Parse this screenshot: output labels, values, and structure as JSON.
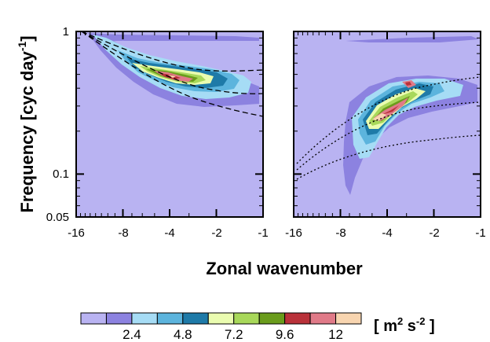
{
  "chart_data": [
    {
      "type": "heatmap",
      "panel": "left",
      "x_axis": {
        "scale": "reciprocal",
        "ticks": [
          -16,
          -8,
          -4,
          -2,
          -1
        ],
        "tick_labels": [
          "-16",
          "-8",
          "-4",
          "-2",
          "-1"
        ]
      },
      "y_axis": {
        "scale": "log",
        "range": [
          0.05,
          1
        ],
        "ticks": [
          0.05,
          0.1,
          1
        ],
        "tick_labels": [
          "0.05",
          "0.1",
          "1"
        ]
      },
      "dispersion_curves": "dashed",
      "peak_region": {
        "wavenumber": [
          -5,
          -3
        ],
        "frequency": [
          0.45,
          0.55
        ]
      }
    },
    {
      "type": "heatmap",
      "panel": "right",
      "x_axis": {
        "scale": "reciprocal",
        "ticks": [
          -16,
          -8,
          -4,
          -2,
          -1
        ],
        "tick_labels": [
          "-16",
          "-8",
          "-4",
          "-2",
          "-1"
        ]
      },
      "y_axis": {
        "scale": "log",
        "range": [
          0.05,
          1
        ],
        "ticks": [
          0.05,
          0.1,
          1
        ]
      },
      "dispersion_curves": "dotted",
      "peak_region": {
        "wavenumber": [
          -5,
          -3
        ],
        "frequency": [
          0.25,
          0.5
        ]
      }
    }
  ],
  "labels": {
    "ylabel_main": "Frequency [cyc day",
    "ylabel_sup": "-1",
    "ylabel_end": "]",
    "xlabel": "Zonal wavenumber"
  },
  "colorbar": {
    "colors": [
      "#b9b3f2",
      "#8c82e0",
      "#a6dcf5",
      "#5cb4dd",
      "#1e7aa8",
      "#eafcb0",
      "#a8d85a",
      "#6a9c1c",
      "#b9323a",
      "#e07a88",
      "#f8d5b0"
    ],
    "tick_labels": [
      "2.4",
      "4.8",
      "7.2",
      "9.6",
      "12"
    ],
    "units_open": "[ m",
    "units_sup1": "2",
    "units_mid": " s",
    "units_sup2": "-2",
    "units_close": " ]"
  }
}
